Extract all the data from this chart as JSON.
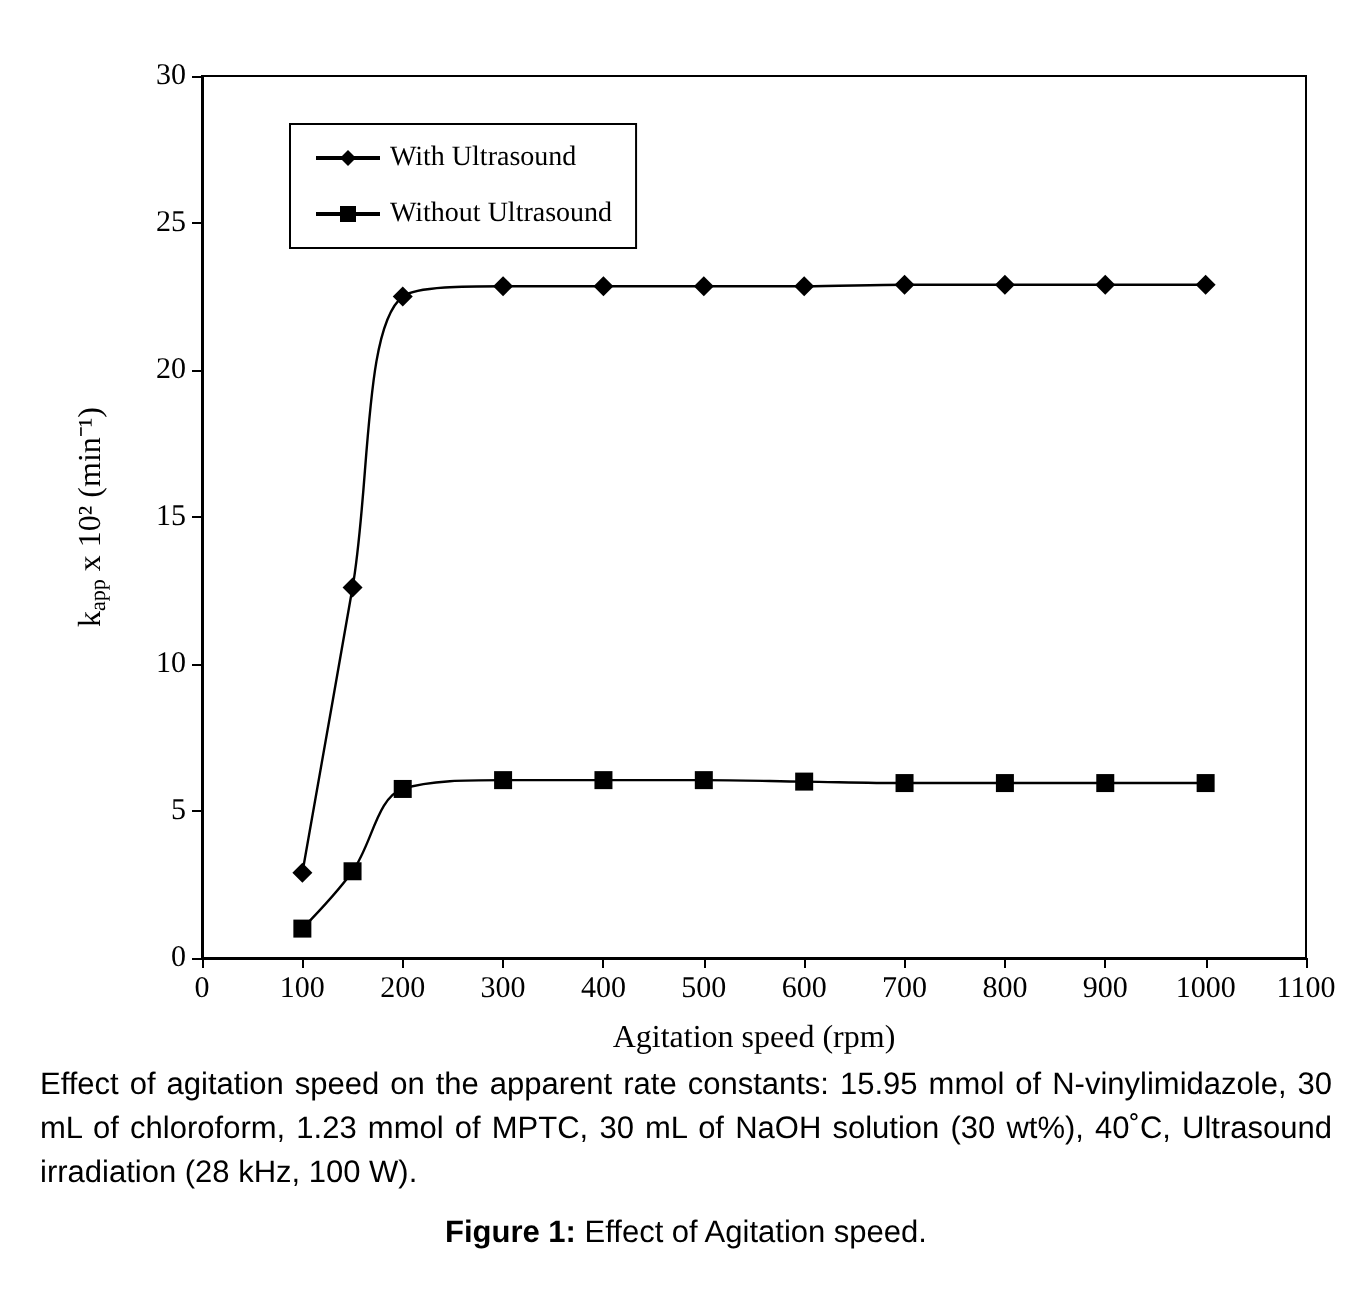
{
  "chart_data": {
    "type": "line",
    "xlabel": "Agitation speed (rpm)",
    "ylabel": "k$_{app}$ x 10² (min⁻¹)",
    "x": [
      100,
      150,
      200,
      300,
      400,
      500,
      600,
      700,
      800,
      900,
      1000
    ],
    "series": [
      {
        "name": "With Ultrasound",
        "color": "#000000",
        "marker": "diamond",
        "values": [
          2.9,
          12.6,
          22.5,
          22.85,
          22.85,
          22.85,
          22.85,
          22.9,
          22.9,
          22.9,
          22.9
        ]
      },
      {
        "name": "Without Ultrasound",
        "color": "#000000",
        "marker": "square",
        "values": [
          1.0,
          2.95,
          5.75,
          6.05,
          6.05,
          6.05,
          6.0,
          5.95,
          5.95,
          5.95,
          5.95
        ]
      }
    ],
    "xlim": [
      0,
      1100
    ],
    "xticks": [
      0,
      100,
      200,
      300,
      400,
      500,
      600,
      700,
      800,
      900,
      1000,
      1100
    ],
    "ylim": [
      0,
      30
    ],
    "yticks": [
      0,
      5,
      10,
      15,
      20,
      25,
      30
    ],
    "grid": false,
    "legend": "top left",
    "line_style": "solid",
    "annotations": [
      "Effect of agitation speed on the apparent rate constants: 15.95 mmol of N-vinylimidazole, 30 mL of chloroform, 1.23 mmol of MPTC, 30 mL of NaOH solution (30 wt%), 40˚C, Ultrasound irradiation (28 kHz, 100 W).",
      "Figure 1: Effect of Agitation speed."
    ]
  }
}
